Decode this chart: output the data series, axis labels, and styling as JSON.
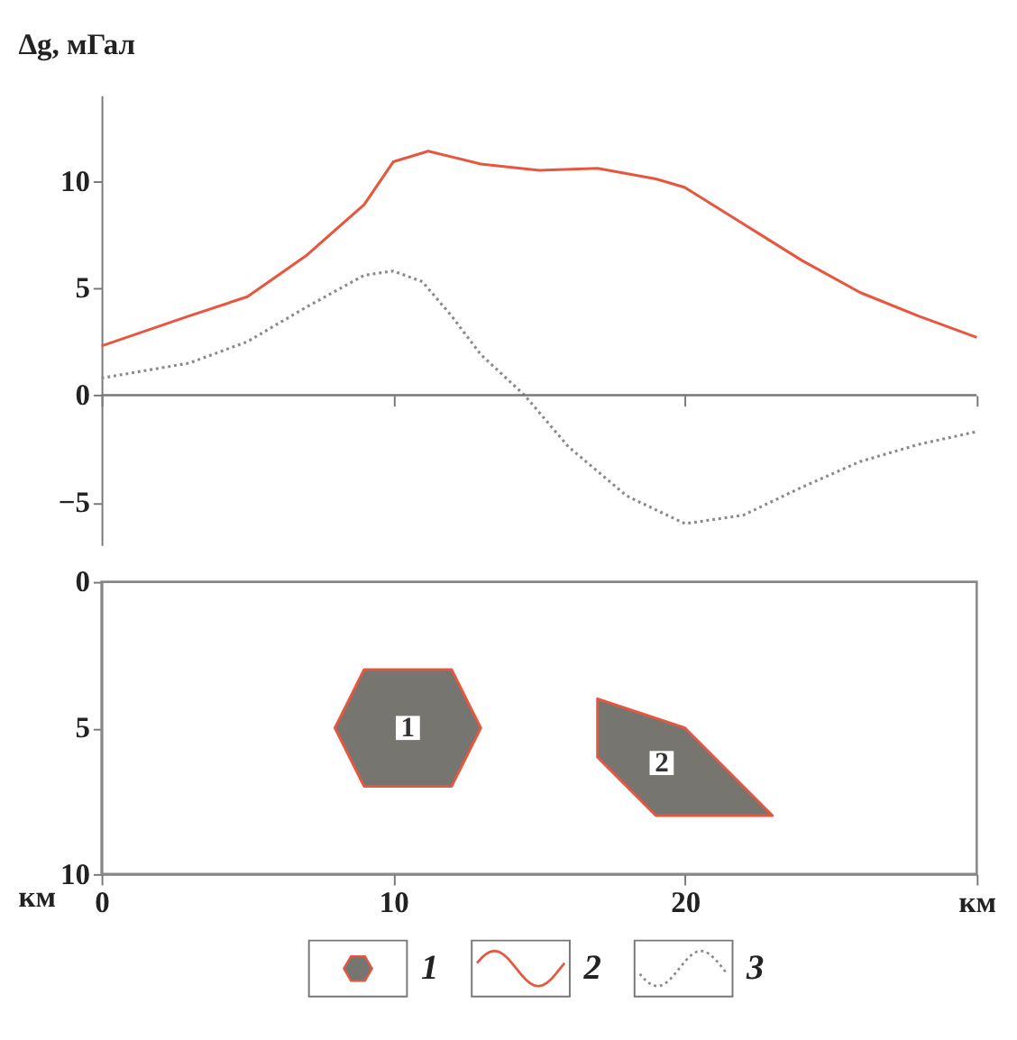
{
  "chart_data": [
    {
      "type": "line",
      "ylabel": "Δg, мГал",
      "legend": "bottom",
      "tick_labels": "y",
      "ref_lines": [
        {
          "axis": "y",
          "value": 0,
          "color": "#777777"
        }
      ],
      "x": [
        0,
        3,
        5,
        7,
        9,
        10,
        11.2,
        13,
        15,
        17,
        19,
        20,
        22,
        24,
        26,
        28,
        30
      ],
      "xlim": [
        0,
        30
      ],
      "xticks": [
        {
          "value": 0,
          "label": null
        },
        {
          "value": 10,
          "label": null
        },
        {
          "value": 20,
          "label": null
        },
        {
          "value": 30,
          "label": null
        }
      ],
      "ylim": [
        -7,
        14
      ],
      "yticks": [
        -5,
        0,
        5,
        10
      ],
      "series": [
        {
          "name": "2",
          "color": "#e8563e",
          "line_style": "solid",
          "values": [
            2.3,
            3.7,
            4.6,
            6.5,
            8.9,
            10.9,
            11.4,
            10.8,
            10.5,
            10.6,
            10.1,
            9.7,
            8.0,
            6.3,
            4.8,
            3.7,
            2.7
          ]
        },
        {
          "name": "3",
          "color": "#8a8a8a",
          "line_style": "dotted",
          "x": [
            0,
            3,
            5,
            7,
            9,
            10,
            11,
            12,
            13,
            14.5,
            16,
            18,
            20,
            22,
            24,
            26,
            28,
            30
          ],
          "values": [
            0.8,
            1.5,
            2.5,
            4.1,
            5.6,
            5.8,
            5.3,
            3.7,
            1.9,
            0,
            -2.4,
            -4.7,
            -6.0,
            -5.6,
            -4.3,
            -3.1,
            -2.3,
            -1.7
          ]
        }
      ]
    },
    {
      "type": "area",
      "ylabel": "км",
      "xlim": [
        0,
        30
      ],
      "xticks": [
        0,
        10,
        20,
        {
          "value": 30,
          "label": "км"
        }
      ],
      "ylim": [
        10,
        0
      ],
      "yticks": [
        0,
        5,
        10
      ],
      "series": [
        {
          "name": "1",
          "color": "#767570",
          "x": [
            9,
            12,
            13,
            12,
            9,
            8
          ],
          "values": [
            3,
            3,
            5,
            7,
            7,
            5
          ]
        },
        {
          "color": "#767570",
          "x": [
            17,
            20,
            23,
            19,
            17
          ],
          "values": [
            4,
            5,
            8,
            8,
            6
          ]
        }
      ],
      "annotations": [
        "1",
        "2"
      ]
    }
  ]
}
